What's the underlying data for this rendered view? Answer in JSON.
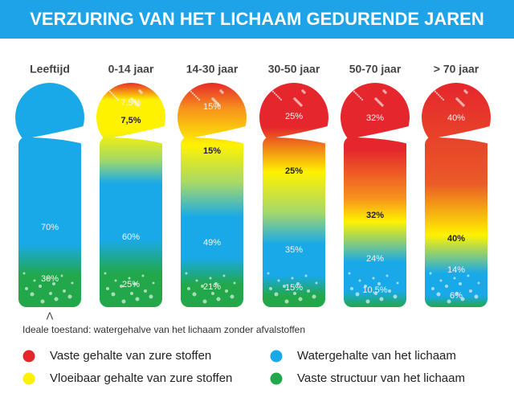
{
  "title": "VERZURING VAN HET LICHAAM GEDURENDE JAREN",
  "columns": [
    {
      "header": "Leeftijd",
      "labels": [
        "70%",
        "30%"
      ]
    },
    {
      "header": "0-14 jaar",
      "labels": [
        "7,5%",
        "7,5%",
        "60%",
        "25%"
      ]
    },
    {
      "header": "14-30 jaar",
      "labels": [
        "15%",
        "15%",
        "49%",
        "21%"
      ]
    },
    {
      "header": "30-50 jaar",
      "labels": [
        "25%",
        "25%",
        "35%",
        "15%"
      ]
    },
    {
      "header": "50-70 jaar",
      "labels": [
        "32%",
        "32%",
        "24%",
        "10,5%"
      ]
    },
    {
      "header": "> 70 jaar",
      "labels": [
        "40%",
        "40%",
        "14%",
        "6%"
      ]
    }
  ],
  "caret": "Λ",
  "note": "Ideale toestand: watergehalve van het lichaam zonder afvalstoffen",
  "legend": [
    {
      "label": "Vaste gehalte van zure stoffen"
    },
    {
      "label": "Watergehalte van het lichaam"
    },
    {
      "label": "Vloeibaar gehalte van zure stoffen"
    },
    {
      "label": "Vaste structuur van het lichaam"
    }
  ]
}
